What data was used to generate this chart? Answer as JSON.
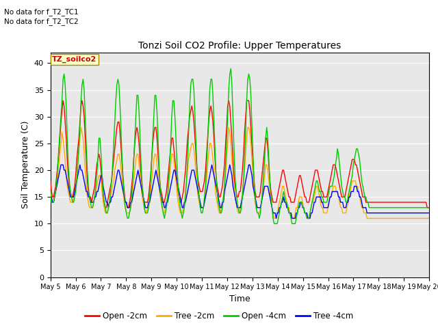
{
  "title": "Tonzi Soil CO2 Profile: Upper Temperatures",
  "xlabel": "Time",
  "ylabel": "Soil Temperature (C)",
  "ylim": [
    0,
    42
  ],
  "yticks": [
    0,
    5,
    10,
    15,
    20,
    25,
    30,
    35,
    40
  ],
  "bg_color": "#e8e8e8",
  "fig_color": "#ffffff",
  "no_data_text": [
    "No data for f_T2_TC1",
    "No data for f_T2_TC2"
  ],
  "box_label": "TZ_soilco2",
  "legend_entries": [
    "Open -2cm",
    "Tree -2cm",
    "Open -4cm",
    "Tree -4cm"
  ],
  "legend_colors": [
    "#ff0000",
    "#ffaa00",
    "#00cc00",
    "#0000ff"
  ],
  "x_tick_labels": [
    "May 5",
    "May 6",
    "May 7",
    "May 8",
    "May 9",
    "May 10",
    "May 11",
    "May 12",
    "May 13",
    "May 14",
    "May 15",
    "May 16",
    "May 17",
    "May 18",
    "May 19",
    "May 20"
  ],
  "n_points": 360,
  "open2cm_values": [
    18,
    16,
    15,
    15,
    16,
    17,
    19,
    21,
    23,
    26,
    29,
    31,
    33,
    32,
    29,
    26,
    22,
    19,
    17,
    16,
    15,
    15,
    16,
    17,
    19,
    22,
    24,
    26,
    29,
    32,
    33,
    32,
    30,
    26,
    22,
    18,
    16,
    15,
    15,
    14,
    15,
    16,
    17,
    19,
    21,
    22,
    23,
    22,
    20,
    17,
    15,
    14,
    13,
    13,
    14,
    15,
    16,
    17,
    18,
    20,
    22,
    24,
    26,
    28,
    29,
    29,
    27,
    24,
    21,
    18,
    16,
    14,
    14,
    13,
    13,
    14,
    15,
    17,
    19,
    22,
    25,
    27,
    28,
    27,
    25,
    22,
    19,
    17,
    15,
    14,
    14,
    14,
    14,
    15,
    17,
    19,
    22,
    25,
    27,
    28,
    28,
    26,
    23,
    20,
    17,
    16,
    15,
    14,
    14,
    15,
    16,
    18,
    20,
    22,
    24,
    26,
    26,
    24,
    22,
    20,
    17,
    16,
    15,
    14,
    14,
    15,
    16,
    18,
    20,
    23,
    26,
    28,
    30,
    31,
    32,
    31,
    29,
    26,
    23,
    20,
    18,
    17,
    16,
    16,
    16,
    17,
    18,
    20,
    23,
    26,
    29,
    31,
    32,
    31,
    29,
    26,
    22,
    19,
    17,
    16,
    15,
    15,
    16,
    17,
    19,
    21,
    25,
    28,
    32,
    33,
    32,
    29,
    26,
    22,
    19,
    17,
    16,
    15,
    15,
    16,
    16,
    18,
    20,
    23,
    27,
    30,
    33,
    33,
    33,
    31,
    28,
    24,
    21,
    18,
    16,
    15,
    15,
    15,
    15,
    16,
    18,
    20,
    22,
    24,
    26,
    26,
    24,
    21,
    18,
    16,
    15,
    14,
    14,
    14,
    14,
    15,
    16,
    17,
    18,
    19,
    20,
    20,
    19,
    18,
    17,
    16,
    15,
    15,
    14,
    14,
    14,
    14,
    15,
    16,
    17,
    18,
    19,
    19,
    18,
    17,
    16,
    15,
    15,
    14,
    14,
    14,
    15,
    16,
    17,
    18,
    19,
    20,
    20,
    20,
    19,
    18,
    17,
    16,
    16,
    15,
    15,
    15,
    15,
    16,
    17,
    18,
    19,
    20,
    21,
    21,
    21,
    20,
    19,
    18,
    17,
    16,
    15,
    15,
    15,
    15,
    16,
    17,
    18,
    19,
    20,
    21,
    22,
    22,
    22,
    21,
    21,
    20,
    19,
    18,
    17,
    16,
    15,
    15,
    15,
    14,
    14,
    14,
    14,
    14,
    14,
    14,
    14,
    14,
    14,
    14,
    14,
    14,
    14,
    14,
    14,
    14,
    14,
    14,
    14,
    14,
    14,
    14,
    14,
    14,
    14,
    14,
    14,
    14,
    14,
    14,
    14,
    14,
    14,
    14,
    14,
    14,
    14,
    14,
    14,
    14,
    14,
    14,
    14,
    14,
    14,
    14,
    14,
    14,
    14,
    14,
    14,
    14,
    14,
    14,
    14,
    14,
    14,
    13,
    13,
    13
  ],
  "tree2cm_values": [
    16,
    15,
    14,
    14,
    15,
    16,
    17,
    19,
    21,
    23,
    25,
    27,
    26,
    24,
    22,
    19,
    17,
    16,
    15,
    14,
    14,
    14,
    15,
    16,
    17,
    19,
    22,
    24,
    26,
    28,
    27,
    26,
    23,
    20,
    17,
    15,
    14,
    13,
    13,
    13,
    13,
    14,
    15,
    16,
    17,
    18,
    19,
    19,
    18,
    16,
    14,
    13,
    12,
    12,
    12,
    13,
    14,
    15,
    16,
    17,
    18,
    20,
    21,
    22,
    23,
    23,
    22,
    20,
    18,
    16,
    14,
    13,
    12,
    12,
    12,
    12,
    13,
    14,
    16,
    18,
    20,
    22,
    23,
    23,
    21,
    19,
    17,
    15,
    14,
    13,
    12,
    12,
    13,
    13,
    14,
    16,
    18,
    20,
    22,
    23,
    23,
    21,
    19,
    17,
    15,
    14,
    13,
    12,
    12,
    13,
    14,
    15,
    17,
    19,
    21,
    23,
    23,
    22,
    20,
    18,
    16,
    14,
    13,
    12,
    12,
    12,
    13,
    14,
    16,
    18,
    20,
    22,
    23,
    24,
    25,
    25,
    24,
    22,
    19,
    17,
    15,
    14,
    13,
    13,
    13,
    13,
    14,
    16,
    18,
    21,
    23,
    25,
    25,
    24,
    22,
    20,
    17,
    15,
    14,
    13,
    12,
    12,
    13,
    14,
    15,
    17,
    19,
    22,
    25,
    28,
    27,
    25,
    22,
    19,
    17,
    15,
    14,
    13,
    12,
    12,
    13,
    14,
    16,
    18,
    20,
    23,
    26,
    28,
    28,
    27,
    25,
    22,
    19,
    16,
    14,
    13,
    12,
    12,
    12,
    13,
    14,
    16,
    17,
    19,
    21,
    21,
    20,
    18,
    16,
    14,
    13,
    12,
    11,
    11,
    11,
    12,
    13,
    14,
    15,
    16,
    17,
    17,
    16,
    15,
    14,
    13,
    13,
    12,
    12,
    11,
    11,
    11,
    12,
    13,
    13,
    14,
    15,
    15,
    15,
    14,
    13,
    12,
    12,
    11,
    11,
    11,
    12,
    13,
    14,
    14,
    15,
    16,
    17,
    17,
    16,
    15,
    14,
    13,
    13,
    12,
    12,
    12,
    12,
    13,
    14,
    15,
    15,
    16,
    17,
    17,
    17,
    16,
    16,
    15,
    14,
    13,
    13,
    12,
    12,
    12,
    12,
    13,
    14,
    15,
    16,
    17,
    18,
    18,
    18,
    18,
    17,
    17,
    16,
    15,
    14,
    13,
    13,
    12,
    12,
    12,
    11,
    11,
    11,
    11,
    11,
    11,
    11,
    11,
    11,
    11,
    11,
    11,
    11,
    11,
    11,
    11,
    11,
    11,
    11,
    11,
    11,
    11,
    11,
    11,
    11,
    11,
    11,
    11,
    11,
    11,
    11,
    11,
    11,
    11,
    11,
    11,
    11,
    11,
    11,
    11,
    11,
    11,
    11,
    11,
    11,
    11,
    11,
    11,
    11,
    11,
    11,
    11,
    11,
    11,
    11,
    11,
    11,
    11,
    11,
    11
  ],
  "open4cm_values": [
    16,
    14,
    14,
    14,
    15,
    16,
    18,
    21,
    24,
    27,
    30,
    33,
    37,
    38,
    36,
    32,
    26,
    21,
    18,
    16,
    15,
    14,
    14,
    15,
    16,
    18,
    21,
    24,
    28,
    33,
    36,
    37,
    35,
    30,
    25,
    20,
    17,
    15,
    14,
    13,
    13,
    14,
    15,
    17,
    19,
    22,
    26,
    26,
    23,
    19,
    16,
    14,
    13,
    12,
    12,
    13,
    14,
    16,
    18,
    21,
    25,
    29,
    33,
    36,
    37,
    36,
    32,
    27,
    22,
    18,
    15,
    13,
    12,
    11,
    11,
    12,
    13,
    15,
    18,
    22,
    26,
    30,
    34,
    34,
    31,
    26,
    21,
    17,
    15,
    13,
    12,
    12,
    12,
    13,
    15,
    18,
    22,
    26,
    30,
    34,
    34,
    31,
    26,
    21,
    17,
    15,
    13,
    12,
    11,
    12,
    13,
    15,
    18,
    21,
    25,
    30,
    33,
    33,
    30,
    26,
    21,
    17,
    15,
    13,
    12,
    11,
    12,
    13,
    15,
    18,
    22,
    27,
    32,
    36,
    37,
    37,
    35,
    30,
    25,
    20,
    17,
    15,
    13,
    12,
    12,
    13,
    15,
    17,
    21,
    25,
    30,
    35,
    37,
    37,
    34,
    29,
    24,
    19,
    16,
    14,
    13,
    12,
    12,
    13,
    15,
    17,
    21,
    25,
    30,
    35,
    38,
    39,
    36,
    30,
    24,
    19,
    16,
    14,
    13,
    12,
    12,
    13,
    15,
    18,
    22,
    27,
    33,
    37,
    38,
    37,
    34,
    28,
    23,
    18,
    15,
    13,
    12,
    12,
    11,
    12,
    14,
    16,
    19,
    22,
    26,
    28,
    26,
    22,
    18,
    15,
    13,
    11,
    10,
    10,
    10,
    10,
    11,
    12,
    13,
    14,
    15,
    16,
    15,
    14,
    14,
    13,
    12,
    12,
    11,
    10,
    10,
    10,
    10,
    11,
    12,
    13,
    14,
    14,
    14,
    13,
    13,
    12,
    12,
    11,
    11,
    11,
    12,
    13,
    14,
    15,
    16,
    17,
    18,
    18,
    17,
    16,
    16,
    15,
    15,
    14,
    14,
    14,
    14,
    15,
    16,
    17,
    17,
    17,
    18,
    19,
    21,
    22,
    24,
    23,
    21,
    19,
    17,
    16,
    15,
    15,
    14,
    14,
    15,
    16,
    17,
    18,
    19,
    21,
    22,
    23,
    24,
    24,
    23,
    22,
    20,
    18,
    17,
    16,
    15,
    15,
    14,
    14,
    13,
    13,
    13,
    13,
    13,
    13,
    13,
    13,
    13,
    13,
    13,
    13,
    13,
    13,
    13,
    13,
    13,
    13,
    13,
    13,
    13,
    13,
    13,
    13,
    13,
    13,
    13,
    13,
    13,
    13,
    13,
    13,
    13,
    13,
    13,
    13,
    13,
    13,
    13,
    13,
    13,
    13,
    13,
    13,
    13,
    13,
    13,
    13,
    13,
    13,
    13,
    13,
    13,
    13,
    13,
    13,
    13,
    13
  ],
  "tree4cm_values": [
    15,
    15,
    14,
    14,
    15,
    16,
    17,
    18,
    19,
    20,
    21,
    21,
    21,
    20,
    20,
    19,
    18,
    17,
    16,
    15,
    15,
    15,
    15,
    16,
    17,
    18,
    19,
    20,
    21,
    20,
    20,
    19,
    18,
    17,
    16,
    16,
    15,
    15,
    14,
    14,
    14,
    14,
    15,
    15,
    16,
    16,
    17,
    18,
    19,
    19,
    17,
    16,
    15,
    14,
    14,
    13,
    14,
    14,
    15,
    15,
    16,
    17,
    18,
    19,
    20,
    20,
    19,
    18,
    17,
    16,
    15,
    14,
    14,
    13,
    13,
    13,
    14,
    14,
    15,
    16,
    17,
    18,
    19,
    20,
    19,
    18,
    17,
    16,
    15,
    14,
    13,
    13,
    13,
    14,
    14,
    15,
    16,
    17,
    18,
    19,
    20,
    19,
    18,
    17,
    16,
    15,
    14,
    14,
    13,
    13,
    14,
    14,
    15,
    16,
    17,
    18,
    19,
    20,
    20,
    19,
    18,
    17,
    16,
    15,
    14,
    13,
    13,
    14,
    14,
    15,
    16,
    17,
    18,
    19,
    20,
    20,
    20,
    19,
    18,
    17,
    16,
    15,
    14,
    13,
    13,
    13,
    14,
    15,
    16,
    17,
    18,
    19,
    20,
    21,
    20,
    19,
    18,
    17,
    16,
    15,
    14,
    13,
    13,
    14,
    14,
    16,
    17,
    18,
    19,
    20,
    21,
    20,
    19,
    17,
    16,
    15,
    14,
    13,
    13,
    13,
    13,
    14,
    15,
    16,
    17,
    18,
    19,
    20,
    21,
    21,
    20,
    19,
    17,
    16,
    15,
    14,
    13,
    13,
    13,
    13,
    14,
    15,
    16,
    17,
    17,
    17,
    17,
    16,
    15,
    14,
    13,
    12,
    12,
    12,
    11,
    12,
    12,
    13,
    13,
    14,
    14,
    15,
    14,
    14,
    13,
    13,
    12,
    12,
    12,
    11,
    11,
    11,
    11,
    12,
    12,
    13,
    13,
    14,
    14,
    13,
    13,
    12,
    12,
    12,
    11,
    11,
    11,
    12,
    12,
    13,
    14,
    14,
    15,
    15,
    15,
    15,
    15,
    14,
    14,
    13,
    13,
    13,
    13,
    13,
    14,
    15,
    15,
    16,
    16,
    16,
    16,
    16,
    16,
    15,
    15,
    14,
    14,
    14,
    13,
    13,
    13,
    14,
    14,
    15,
    15,
    16,
    16,
    16,
    17,
    17,
    17,
    16,
    16,
    15,
    15,
    14,
    13,
    13,
    13,
    13,
    12,
    12,
    12,
    12,
    12,
    12,
    12,
    12,
    12,
    12,
    12,
    12,
    12,
    12,
    12,
    12,
    12,
    12,
    12,
    12,
    12,
    12,
    12,
    12,
    12,
    12,
    12,
    12,
    12,
    12,
    12,
    12,
    12,
    12,
    12,
    12,
    12,
    12,
    12,
    12,
    12,
    12,
    12,
    12,
    12,
    12,
    12,
    12,
    12,
    12,
    12,
    12,
    12,
    12,
    12,
    12,
    12,
    12,
    12,
    12
  ]
}
